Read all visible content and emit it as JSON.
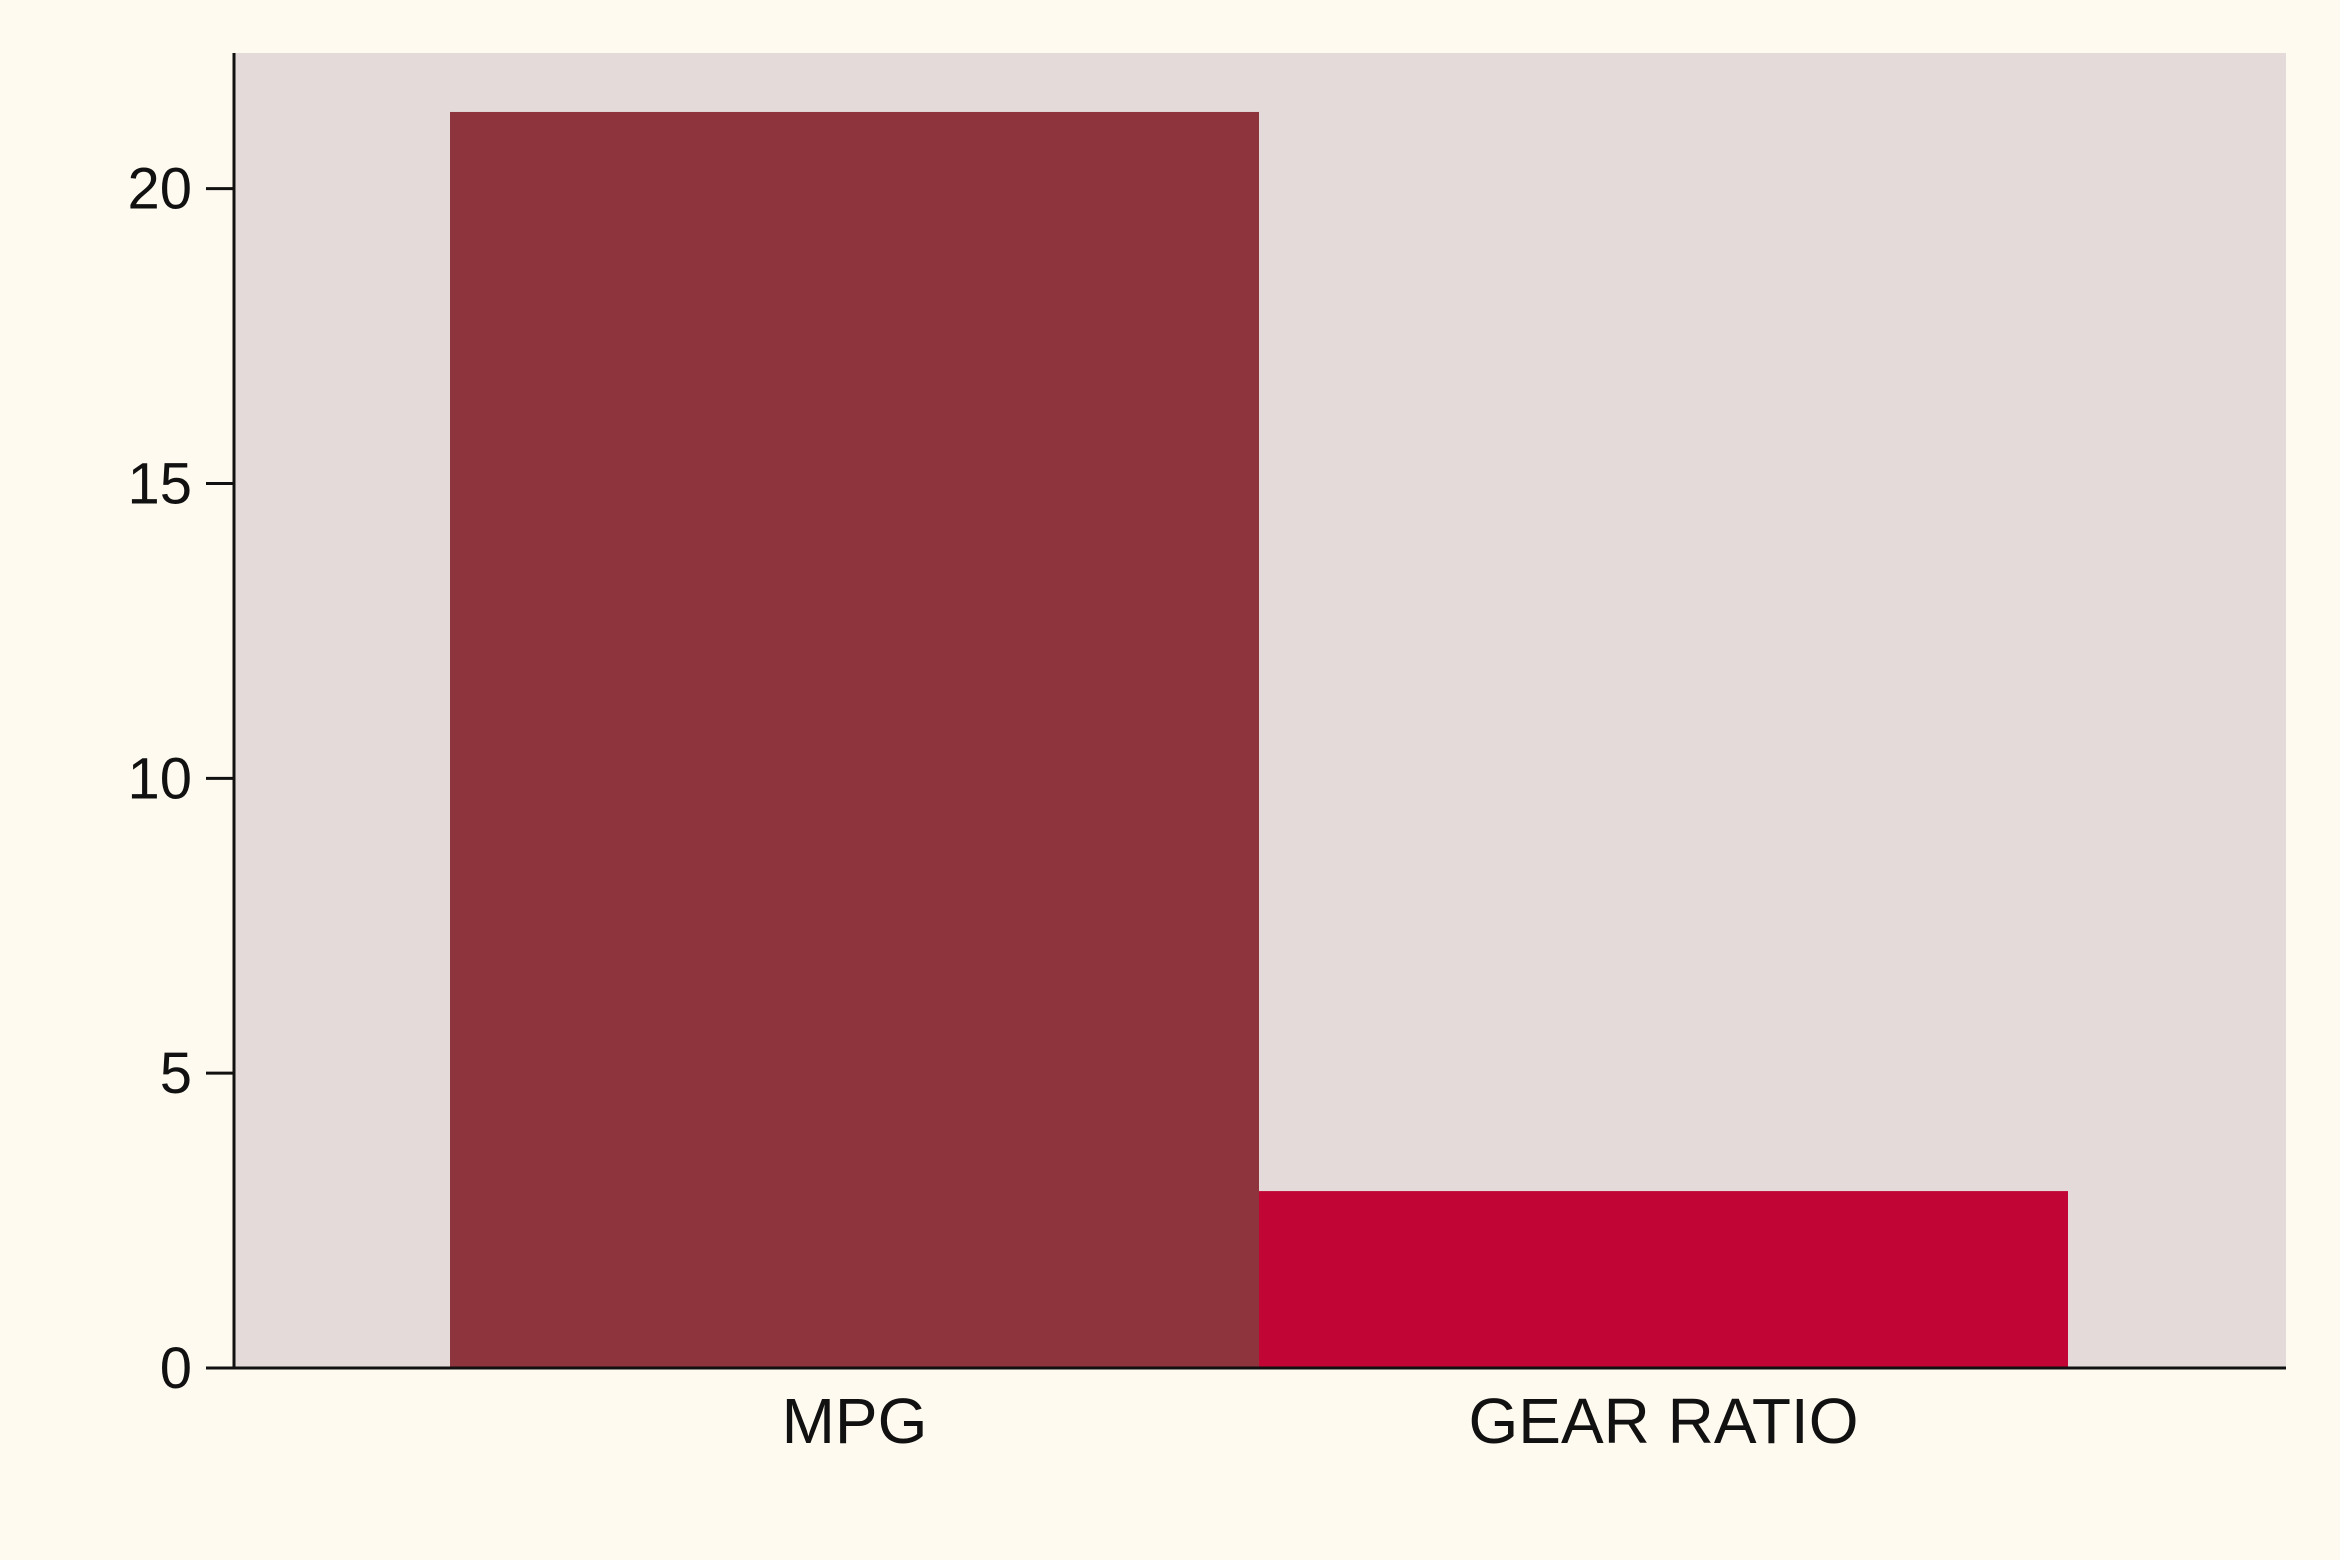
{
  "chart_data": {
    "type": "bar",
    "title": "",
    "xlabel": "",
    "ylabel": "",
    "categories": [
      "MPG",
      "GEAR RATIO"
    ],
    "values": [
      21.3,
      3.0
    ],
    "bar_colors": [
      "#8e343c",
      "#c10534"
    ],
    "ylim": [
      0,
      22.3
    ],
    "yticks": [
      0,
      5,
      10,
      15,
      20
    ],
    "ytick_labels": [
      "0",
      "5",
      "10",
      "15",
      "20"
    ],
    "grid": false,
    "legend": "none"
  },
  "colors": {
    "page_background": "#fffaf0",
    "plot_background": "#e3dad9",
    "axis": "#111111"
  }
}
